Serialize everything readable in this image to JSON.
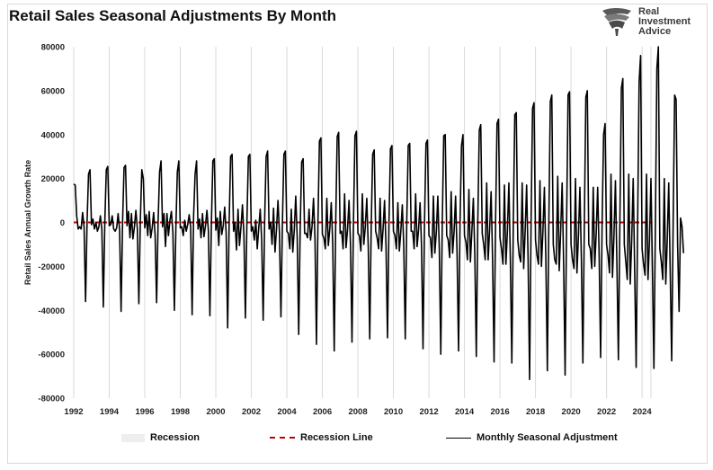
{
  "title": "Retail Sales Seasonal Adjustments By Month",
  "logo": {
    "line1": "Real",
    "line2": "Investment",
    "line3": "Advice"
  },
  "legend": {
    "recession": "Recession",
    "recession_line": "Recession Line",
    "series": "Monthly Seasonal Adjustment"
  },
  "colors": {
    "series": "#000000",
    "recession_line": "#c00000",
    "grid": "#d9d9d9",
    "recession_fill": "#eeeeee"
  },
  "chart_data": {
    "type": "line",
    "title": "Retail Sales Seasonal Adjustments By Month",
    "ylabel": "Retail Sales Annual Growth Rate",
    "xlabel": "",
    "xlim": [
      1992,
      2024.5
    ],
    "ylim": [
      -80000,
      80000
    ],
    "y_ticks": [
      "80000",
      "60000",
      "40000",
      "20000",
      "0",
      "-20000",
      "-40000",
      "-60000",
      "-80000"
    ],
    "x_ticks": [
      "1992",
      "1994",
      "1996",
      "1998",
      "2000",
      "2002",
      "2004",
      "2006",
      "2008",
      "2010",
      "2012",
      "2014",
      "2016",
      "2018",
      "2020",
      "2022",
      "2024"
    ],
    "grid": "vertical",
    "legend_position": "bottom",
    "recession_line_value": 0,
    "series": [
      {
        "name": "Monthly Seasonal Adjustment",
        "x_start": 1992.0,
        "x_step_months": 1,
        "values": [
          17500,
          17000,
          3000,
          -3000,
          -2000,
          -3000,
          4500,
          -2000,
          -36000,
          0,
          22000,
          24000,
          -1000,
          1500,
          -3000,
          0,
          -4000,
          -2000,
          3000,
          -3000,
          -38500,
          0,
          24000,
          25500,
          -1500,
          -1000,
          3000,
          -3000,
          -4000,
          -2500,
          4000,
          -3500,
          -40500,
          0,
          25000,
          26000,
          -1500,
          5000,
          -7000,
          4000,
          -7500,
          -2000,
          5500,
          -3000,
          -37000,
          1000,
          24000,
          20000,
          -2500,
          3500,
          -6000,
          5000,
          -7000,
          -2500,
          4500,
          -6000,
          -36500,
          0,
          23000,
          28000,
          -2000,
          4000,
          -11000,
          4000,
          -6000,
          1000,
          5000,
          -4500,
          -40000,
          -3000,
          23000,
          28000,
          -2500,
          -2000,
          -6000,
          1000,
          -4000,
          -1000,
          3500,
          -2000,
          -42000,
          3000,
          22000,
          28000,
          -3000,
          1500,
          -7000,
          4000,
          -6500,
          -1500,
          5500,
          -4000,
          -42500,
          -1000,
          28000,
          29000,
          -3500,
          2000,
          -10500,
          5000,
          -5500,
          -1500,
          7000,
          -5000,
          -48000,
          0,
          30000,
          31000,
          -4000,
          0,
          -12500,
          6000,
          -10500,
          -2000,
          8000,
          -6000,
          -43500,
          0,
          30000,
          31000,
          -4000,
          -2000,
          -8000,
          1000,
          -12000,
          -2500,
          6000,
          -8000,
          -44500,
          1000,
          30000,
          32500,
          -3000,
          0,
          -10000,
          6500,
          -13500,
          -3000,
          10000,
          -5000,
          -43000,
          0,
          31000,
          32500,
          -4000,
          -5000,
          -12000,
          6000,
          -13500,
          -3500,
          12000,
          -7000,
          -51000,
          -3000,
          27500,
          29000,
          -5000,
          -5000,
          -7000,
          6000,
          -8000,
          -2000,
          11000,
          -7000,
          -55500,
          0,
          37000,
          38500,
          -5500,
          -7000,
          -12000,
          11000,
          -10500,
          -3000,
          9000,
          -10000,
          -58500,
          0,
          39000,
          41000,
          -5000,
          -4000,
          -12000,
          13000,
          -11500,
          -3000,
          10000,
          -10000,
          -54500,
          0,
          39500,
          41500,
          -5000,
          -6000,
          -13000,
          13000,
          -10000,
          -2000,
          11000,
          -11000,
          -53000,
          -1000,
          31000,
          33000,
          -4000,
          -7000,
          -12000,
          11000,
          -13000,
          -3000,
          10000,
          -11000,
          -52500,
          0,
          33500,
          35000,
          -4000,
          -6000,
          -12000,
          9000,
          -13000,
          -4000,
          8000,
          -11000,
          -53000,
          0,
          35000,
          36000,
          -4000,
          -4000,
          -12000,
          13000,
          -11000,
          -3000,
          9000,
          -11000,
          -57500,
          0,
          36000,
          37500,
          -6000,
          -7000,
          -16000,
          12000,
          -14000,
          -4000,
          12000,
          -12000,
          -60000,
          0,
          39500,
          40000,
          -6000,
          -8000,
          -16000,
          14000,
          -14000,
          -4000,
          12000,
          -14000,
          -58500,
          0,
          35000,
          40000,
          -6000,
          -9000,
          -17000,
          15000,
          -18000,
          -4000,
          11000,
          -15000,
          -61000,
          0,
          42000,
          44500,
          -5000,
          -10000,
          -17000,
          18000,
          -17000,
          -3000,
          14000,
          -17000,
          -63500,
          0,
          45000,
          47000,
          -7000,
          -12000,
          -19000,
          17000,
          -19000,
          -4000,
          18000,
          -17000,
          -64000,
          0,
          49000,
          50000,
          -8000,
          -15000,
          -18000,
          18000,
          -21000,
          -4000,
          17000,
          -17000,
          -71500,
          0,
          52000,
          54500,
          -8000,
          -15000,
          -19000,
          19000,
          -20000,
          -4000,
          16000,
          -17000,
          -67500,
          0,
          55000,
          58000,
          -10000,
          -17000,
          -19000,
          21000,
          -22000,
          -4000,
          18000,
          -19000,
          -69500,
          0,
          58000,
          59500,
          -10000,
          -17000,
          -21000,
          20000,
          -23000,
          -6000,
          16000,
          -17000,
          -64000,
          0,
          57000,
          60000,
          -10000,
          -12000,
          -21000,
          16000,
          -20000,
          -5000,
          16000,
          -15000,
          -61500,
          0,
          40000,
          45000,
          -10000,
          -15000,
          -23000,
          22000,
          -25000,
          -6000,
          19000,
          -19000,
          -62500,
          0,
          61000,
          65500,
          -10000,
          -18000,
          -26000,
          22000,
          -28000,
          -8000,
          20000,
          -22000,
          -66000,
          0,
          64000,
          76000,
          -12000,
          -19000,
          -24000,
          22000,
          -26000,
          -8000,
          20000,
          -22000,
          -66500,
          0,
          70000,
          80000,
          -12000,
          -18000,
          -26000,
          20000,
          -28000,
          -8000,
          18000,
          -22000,
          -63000,
          0,
          58000,
          56000,
          -10000,
          -40500,
          2000,
          -2000,
          -14000
        ]
      }
    ]
  }
}
